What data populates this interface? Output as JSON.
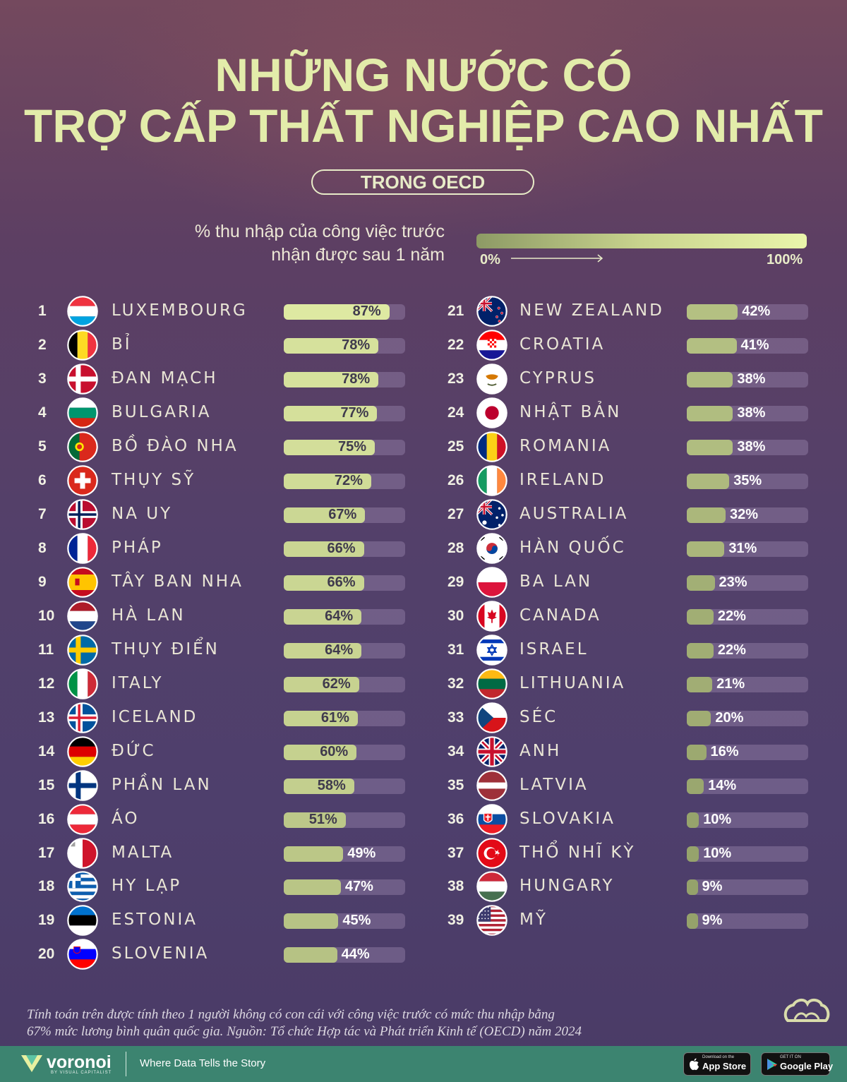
{
  "title": {
    "line1": "NHỮNG NƯỚC CÓ",
    "line2": "TRỢ CẤP THẤT NGHIỆP CAO NHẤT",
    "pill": "TRONG OECD"
  },
  "legend": {
    "line1": "% thu nhập của công việc trước",
    "line2": "nhận được sau 1 năm",
    "min_label": "0%",
    "max_label": "100%"
  },
  "colors": {
    "bar_high": "#eaf5ab",
    "bar_low": "#8d9a65",
    "track": "#8a7da3",
    "title": "#e3ecaa",
    "footer": "#3c8470"
  },
  "chart_data": {
    "type": "bar",
    "orientation": "horizontal",
    "title": "NHỮNG NƯỚC CÓ TRỢ CẤP THẤT NGHIỆP CAO NHẤT TRONG OECD",
    "xlabel": "% thu nhập của công việc trước nhận được sau 1 năm",
    "xlim": [
      0,
      100
    ],
    "value_suffix": "%",
    "columns": 2,
    "categories": [
      "LUXEMBOURG",
      "BỈ",
      "ĐAN MẠCH",
      "BULGARIA",
      "BỒ ĐÀO NHA",
      "THỤY SỸ",
      "NA UY",
      "PHÁP",
      "TÂY BAN NHA",
      "HÀ LAN",
      "THỤY ĐIỂN",
      "ITALY",
      "ICELAND",
      "ĐỨC",
      "PHẦN LAN",
      "ÁO",
      "MALTA",
      "HY LẠP",
      "ESTONIA",
      "SLOVENIA",
      "NEW ZEALAND",
      "CROATIA",
      "CYPRUS",
      "NHẬT BẢN",
      "ROMANIA",
      "IRELAND",
      "AUSTRALIA",
      "HÀN QUỐC",
      "BA LAN",
      "CANADA",
      "ISRAEL",
      "LITHUANIA",
      "SÉC",
      "ANH",
      "LATVIA",
      "SLOVAKIA",
      "THỔ NHĨ KỲ",
      "HUNGARY",
      "MỸ"
    ],
    "values": [
      87,
      78,
      78,
      77,
      75,
      72,
      67,
      66,
      66,
      64,
      64,
      62,
      61,
      60,
      58,
      51,
      49,
      47,
      45,
      44,
      42,
      41,
      38,
      38,
      38,
      35,
      32,
      31,
      23,
      22,
      22,
      21,
      20,
      16,
      14,
      10,
      10,
      9,
      9
    ],
    "flags": [
      "lu",
      "be",
      "dk",
      "bg",
      "pt",
      "ch",
      "no",
      "fr",
      "es",
      "nl",
      "se",
      "it",
      "is",
      "de",
      "fi",
      "at",
      "mt",
      "gr",
      "ee",
      "si",
      "nz",
      "hr",
      "cy",
      "jp",
      "ro",
      "ie",
      "au",
      "kr",
      "pl",
      "ca",
      "il",
      "lt",
      "cz",
      "gb",
      "lv",
      "sk",
      "tr",
      "hu",
      "us"
    ]
  },
  "note": {
    "line1": "Tính toán trên được tính theo 1 người không có con cái với công việc trước có mức thu nhập bằng",
    "line2": "67% mức lương bình quân quốc gia. Nguồn: Tổ chức Hợp tác và Phát triển Kinh tế (OECD) năm 2024"
  },
  "footer": {
    "brand": "voronoi",
    "brand_sub": "BY VISUAL CAPITALIST",
    "tagline": "Where Data Tells the Story",
    "app_store_small": "Download on the",
    "app_store": "App Store",
    "google_play_small": "GET IT ON",
    "google_play": "Google Play"
  }
}
